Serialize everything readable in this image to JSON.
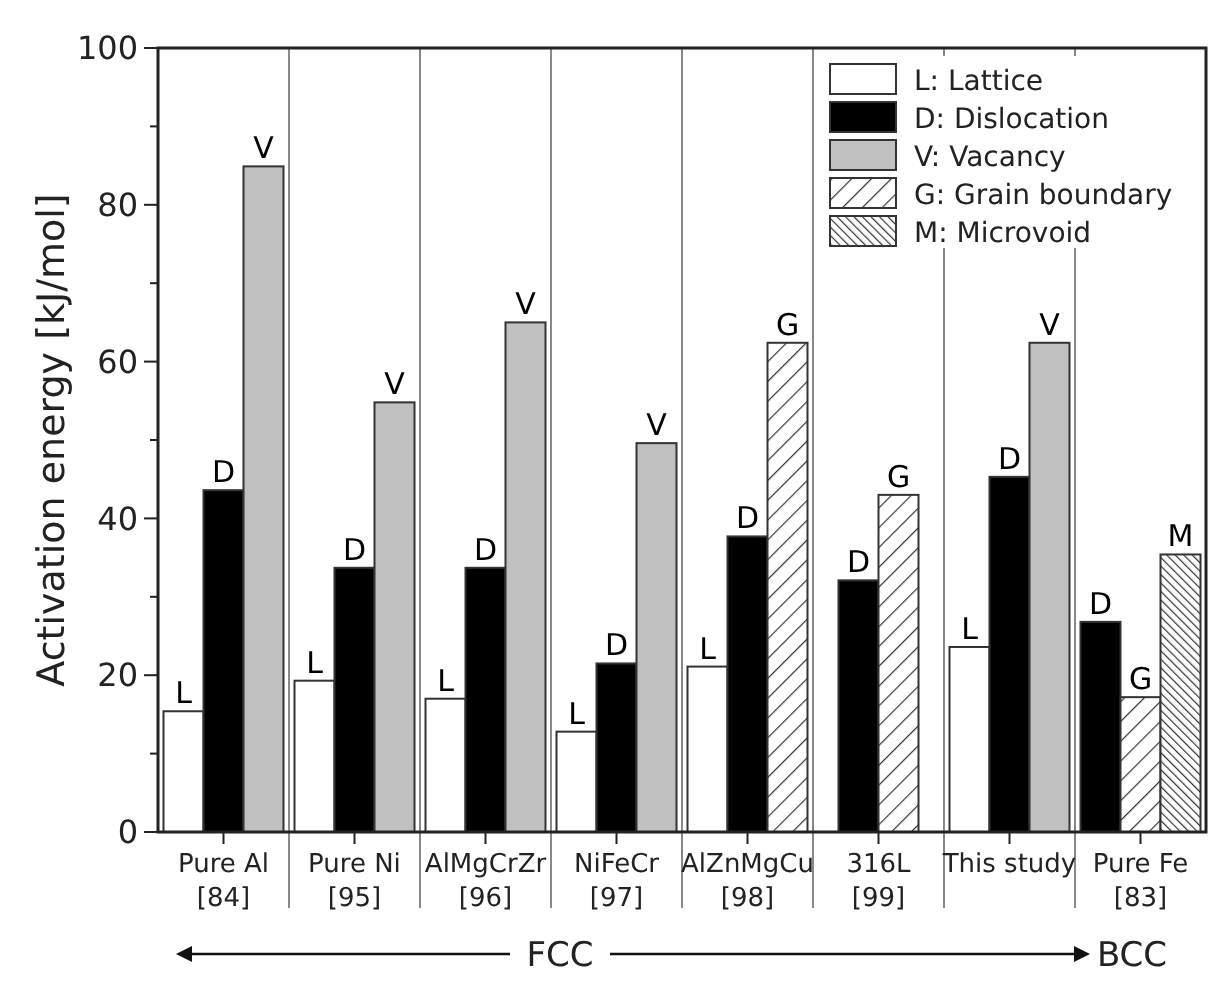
{
  "chart_data": {
    "type": "bar",
    "ylabel": "Activation energy [kJ/mol]",
    "categories": [
      "Pure Al\n[84]",
      "Pure Ni\n[95]",
      "AlMgCrZr\n[96]",
      "NiFeCr\n[97]",
      "AlZnMgCu\n[98]",
      "316L\n[99]",
      "This study",
      "Pure Fe\n[83]"
    ],
    "series": [
      {
        "name": "L: Lattice",
        "color": "#ffffff",
        "values": [
          15.4,
          19.3,
          17,
          12.8,
          21.1,
          null,
          23.6,
          null
        ],
        "value_labels": [
          "L",
          "L",
          "L",
          "L",
          "L",
          null,
          "L",
          null
        ]
      },
      {
        "name": "D: Dislocation",
        "color": "#000000",
        "values": [
          43.6,
          33.7,
          33.7,
          21.5,
          37.7,
          32.1,
          45.3,
          26.8
        ],
        "value_labels": [
          "D",
          "D",
          "D",
          "D",
          "D",
          "D",
          "D",
          "D"
        ]
      },
      {
        "name": "V: Vacancy",
        "color": "#c0c0c0",
        "values": [
          84.9,
          54.8,
          65,
          49.6,
          null,
          null,
          62.4,
          null
        ],
        "value_labels": [
          "V",
          "V",
          "V",
          "V",
          null,
          null,
          "V",
          null
        ]
      },
      {
        "name": "G: Grain boundary",
        "color": "#333333",
        "values": [
          null,
          null,
          null,
          null,
          62.4,
          43,
          null,
          17.2
        ],
        "value_labels": [
          null,
          null,
          null,
          null,
          "G",
          "G",
          null,
          "G"
        ]
      },
      {
        "name": "M: Microvoid",
        "color": "#333333",
        "values": [
          null,
          null,
          null,
          null,
          null,
          null,
          null,
          35.4
        ],
        "value_labels": [
          null,
          null,
          null,
          null,
          null,
          null,
          null,
          "M"
        ]
      }
    ],
    "ylim": [
      0,
      100
    ],
    "yticks": [
      0,
      {
        "value": 10,
        "label": null
      },
      20,
      {
        "value": 30,
        "label": null
      },
      40,
      {
        "value": 50,
        "label": null
      },
      60,
      {
        "value": 70,
        "label": null
      },
      80,
      {
        "value": 90,
        "label": null
      },
      100
    ],
    "grid": "x",
    "legend": "top right",
    "annotations": [
      "FCC",
      "BCC"
    ]
  }
}
